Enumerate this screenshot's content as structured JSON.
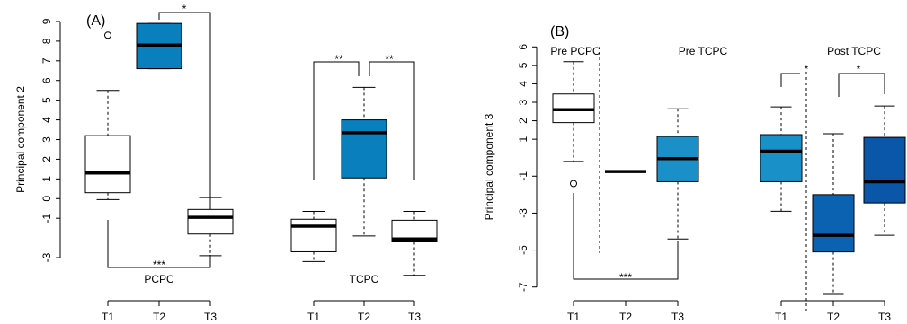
{
  "chart_data": [
    {
      "type": "box",
      "title": "(A)",
      "ylabel": "Principal component 2",
      "categories": [
        "T1",
        "T2",
        "T3",
        "T1",
        "T2",
        "T3"
      ],
      "groups": [
        "PCPC",
        "TCPC"
      ],
      "ylim": [
        -3.5,
        9.5
      ],
      "yticks": [
        -3,
        -1,
        0,
        1,
        2,
        3,
        4,
        5,
        6,
        7,
        8,
        9
      ],
      "boxes": [
        {
          "low": -0.05,
          "q1": 0.3,
          "median": 1.3,
          "q3": 3.2,
          "high": 5.5,
          "outliers": [
            8.3
          ],
          "color": "#ffffff"
        },
        {
          "low": 6.6,
          "q1": 6.6,
          "median": 7.8,
          "q3": 8.9,
          "high": 8.9,
          "outliers": [],
          "color": "#0a7fbd"
        },
        {
          "low": -2.9,
          "q1": -1.8,
          "median": -0.95,
          "q3": -0.55,
          "high": 0.05,
          "outliers": [],
          "color": "#ffffff"
        },
        {
          "low": -3.2,
          "q1": -2.7,
          "median": -1.4,
          "q3": -1.05,
          "high": -0.65,
          "outliers": [],
          "color": "#ffffff"
        },
        {
          "low": -1.9,
          "q1": 1.05,
          "median": 3.35,
          "q3": 4.0,
          "high": 5.65,
          "outliers": [],
          "color": "#0a7fbd"
        },
        {
          "low": -3.9,
          "q1": -2.2,
          "median": -2.05,
          "q3": -1.1,
          "high": -0.65,
          "outliers": [],
          "color": "#ffffff"
        }
      ],
      "annotations": [
        "*",
        "**",
        "**",
        "***"
      ]
    },
    {
      "type": "box",
      "title": "(B)",
      "ylabel": "Principal component 3",
      "categories": [
        "T1",
        "T2",
        "T3",
        "T1",
        "T2",
        "T3"
      ],
      "groups": [
        "Pre PCPC",
        "Pre TCPC",
        "Post TCPC"
      ],
      "ylim": [
        -7.5,
        6.5
      ],
      "yticks": [
        -7,
        -5,
        -3,
        -1,
        1,
        2,
        3,
        4,
        5,
        6
      ],
      "boxes": [
        {
          "low": -0.2,
          "q1": 1.9,
          "median": 2.6,
          "q3": 3.45,
          "high": 5.2,
          "outliers": [
            -1.4
          ],
          "color": "#ffffff"
        },
        {
          "low": -0.75,
          "q1": -0.75,
          "median": -0.75,
          "q3": -0.75,
          "high": -0.75,
          "outliers": [],
          "color": "#1a8fc8"
        },
        {
          "low": -4.4,
          "q1": -1.3,
          "median": -0.05,
          "q3": 1.15,
          "high": 2.65,
          "outliers": [],
          "color": "#1a8fc8"
        },
        {
          "low": -2.9,
          "q1": -1.3,
          "median": 0.35,
          "q3": 1.25,
          "high": 2.75,
          "outliers": [],
          "color": "#1a90c8"
        },
        {
          "low": -7.4,
          "q1": -5.1,
          "median": -4.2,
          "q3": -2.0,
          "high": 1.3,
          "outliers": [],
          "color": "#0a62b0"
        },
        {
          "low": -4.2,
          "q1": -2.45,
          "median": -1.3,
          "q3": 1.1,
          "high": 2.8,
          "outliers": [],
          "color": "#0a56a8"
        }
      ],
      "annotations": [
        "***",
        "*",
        "*"
      ]
    }
  ]
}
